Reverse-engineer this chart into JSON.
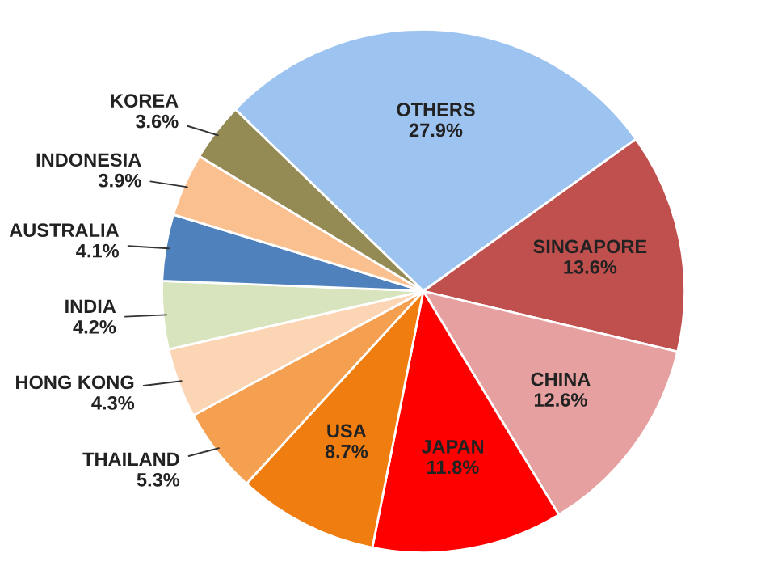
{
  "chart_data": {
    "type": "pie",
    "categories": [
      "OTHERS",
      "SINGAPORE",
      "CHINA",
      "JAPAN",
      "USA",
      "THAILAND",
      "HONG KONG",
      "INDIA",
      "AUSTRALIA",
      "INDONESIA",
      "KOREA"
    ],
    "values": [
      27.9,
      13.6,
      12.6,
      11.8,
      8.7,
      5.3,
      4.3,
      4.2,
      4.1,
      3.9,
      3.6
    ],
    "value_labels": [
      "27.9%",
      "13.6%",
      "12.6%",
      "11.8%",
      "8.7%",
      "5.3%",
      "4.3%",
      "4.2%",
      "4.1%",
      "3.9%",
      "3.6%"
    ],
    "colors": [
      "#9dc3f0",
      "#c0504d",
      "#e6a0a0",
      "#ff0000",
      "#f07d0f",
      "#f5a050",
      "#fcd5b5",
      "#d7e4bd",
      "#4f81bd",
      "#fac090",
      "#948a54"
    ],
    "legend": false
  }
}
